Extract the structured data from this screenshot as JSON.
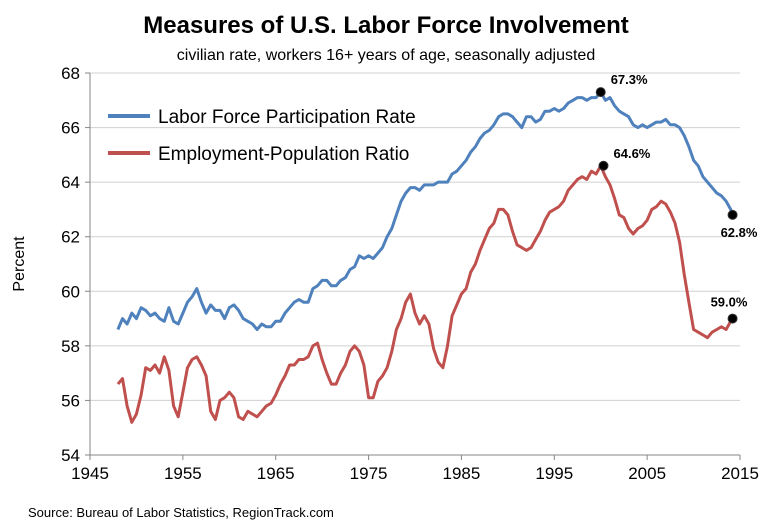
{
  "chart_data": {
    "type": "line",
    "title": "Measures of U.S. Labor Force Involvement",
    "subtitle": "civilian rate, workers 16+ years of age, seasonally adjusted",
    "ylabel": "Percent",
    "xlabel": "",
    "source": "Source: Bureau of Labor Statistics, RegionTrack.com",
    "xlim": [
      1945,
      2015
    ],
    "ylim": [
      54,
      68
    ],
    "x_ticks": [
      "1945",
      "1955",
      "1965",
      "1975",
      "1985",
      "1995",
      "2005",
      "2015"
    ],
    "y_ticks": [
      "54",
      "56",
      "58",
      "60",
      "62",
      "64",
      "66",
      "68"
    ],
    "grid": "horizontal",
    "legend_position": "top-left",
    "series": [
      {
        "name": "Labor Force Participation Rate",
        "color": "#4f81bd",
        "points": [
          [
            1948.0,
            58.6
          ],
          [
            1948.5,
            59.0
          ],
          [
            1949.0,
            58.8
          ],
          [
            1949.5,
            59.2
          ],
          [
            1950.0,
            59.0
          ],
          [
            1950.5,
            59.4
          ],
          [
            1951.0,
            59.3
          ],
          [
            1951.5,
            59.1
          ],
          [
            1952.0,
            59.2
          ],
          [
            1952.5,
            59.0
          ],
          [
            1953.0,
            58.9
          ],
          [
            1953.5,
            59.4
          ],
          [
            1954.0,
            58.9
          ],
          [
            1954.5,
            58.8
          ],
          [
            1955.0,
            59.2
          ],
          [
            1955.5,
            59.6
          ],
          [
            1956.0,
            59.8
          ],
          [
            1956.5,
            60.1
          ],
          [
            1957.0,
            59.6
          ],
          [
            1957.5,
            59.2
          ],
          [
            1958.0,
            59.5
          ],
          [
            1958.5,
            59.3
          ],
          [
            1959.0,
            59.3
          ],
          [
            1959.5,
            59.0
          ],
          [
            1960.0,
            59.4
          ],
          [
            1960.5,
            59.5
          ],
          [
            1961.0,
            59.3
          ],
          [
            1961.5,
            59.0
          ],
          [
            1962.0,
            58.9
          ],
          [
            1962.5,
            58.8
          ],
          [
            1963.0,
            58.6
          ],
          [
            1963.5,
            58.8
          ],
          [
            1964.0,
            58.7
          ],
          [
            1964.5,
            58.7
          ],
          [
            1965.0,
            58.9
          ],
          [
            1965.5,
            58.9
          ],
          [
            1966.0,
            59.2
          ],
          [
            1966.5,
            59.4
          ],
          [
            1967.0,
            59.6
          ],
          [
            1967.5,
            59.7
          ],
          [
            1968.0,
            59.6
          ],
          [
            1968.5,
            59.6
          ],
          [
            1969.0,
            60.1
          ],
          [
            1969.5,
            60.2
          ],
          [
            1970.0,
            60.4
          ],
          [
            1970.5,
            60.4
          ],
          [
            1971.0,
            60.2
          ],
          [
            1971.5,
            60.2
          ],
          [
            1972.0,
            60.4
          ],
          [
            1972.5,
            60.5
          ],
          [
            1973.0,
            60.8
          ],
          [
            1973.5,
            60.9
          ],
          [
            1974.0,
            61.3
          ],
          [
            1974.5,
            61.2
          ],
          [
            1975.0,
            61.3
          ],
          [
            1975.5,
            61.2
          ],
          [
            1976.0,
            61.4
          ],
          [
            1976.5,
            61.6
          ],
          [
            1977.0,
            62.0
          ],
          [
            1977.5,
            62.3
          ],
          [
            1978.0,
            62.8
          ],
          [
            1978.5,
            63.3
          ],
          [
            1979.0,
            63.6
          ],
          [
            1979.5,
            63.8
          ],
          [
            1980.0,
            63.8
          ],
          [
            1980.5,
            63.7
          ],
          [
            1981.0,
            63.9
          ],
          [
            1981.5,
            63.9
          ],
          [
            1982.0,
            63.9
          ],
          [
            1982.5,
            64.0
          ],
          [
            1983.0,
            64.0
          ],
          [
            1983.5,
            64.0
          ],
          [
            1984.0,
            64.3
          ],
          [
            1984.5,
            64.4
          ],
          [
            1985.0,
            64.6
          ],
          [
            1985.5,
            64.8
          ],
          [
            1986.0,
            65.1
          ],
          [
            1986.5,
            65.3
          ],
          [
            1987.0,
            65.6
          ],
          [
            1987.5,
            65.8
          ],
          [
            1988.0,
            65.9
          ],
          [
            1988.5,
            66.1
          ],
          [
            1989.0,
            66.4
          ],
          [
            1989.5,
            66.5
          ],
          [
            1990.0,
            66.5
          ],
          [
            1990.5,
            66.4
          ],
          [
            1991.0,
            66.2
          ],
          [
            1991.5,
            66.0
          ],
          [
            1992.0,
            66.4
          ],
          [
            1992.5,
            66.4
          ],
          [
            1993.0,
            66.2
          ],
          [
            1993.5,
            66.3
          ],
          [
            1994.0,
            66.6
          ],
          [
            1994.5,
            66.6
          ],
          [
            1995.0,
            66.7
          ],
          [
            1995.5,
            66.6
          ],
          [
            1996.0,
            66.7
          ],
          [
            1996.5,
            66.9
          ],
          [
            1997.0,
            67.0
          ],
          [
            1997.5,
            67.1
          ],
          [
            1998.0,
            67.1
          ],
          [
            1998.5,
            67.0
          ],
          [
            1999.0,
            67.1
          ],
          [
            1999.5,
            67.1
          ],
          [
            2000.0,
            67.3
          ],
          [
            2000.5,
            67.0
          ],
          [
            2001.0,
            67.1
          ],
          [
            2001.5,
            66.8
          ],
          [
            2002.0,
            66.6
          ],
          [
            2002.5,
            66.5
          ],
          [
            2003.0,
            66.4
          ],
          [
            2003.5,
            66.1
          ],
          [
            2004.0,
            66.0
          ],
          [
            2004.5,
            66.1
          ],
          [
            2005.0,
            66.0
          ],
          [
            2005.5,
            66.1
          ],
          [
            2006.0,
            66.2
          ],
          [
            2006.5,
            66.2
          ],
          [
            2007.0,
            66.3
          ],
          [
            2007.5,
            66.1
          ],
          [
            2008.0,
            66.1
          ],
          [
            2008.5,
            66.0
          ],
          [
            2009.0,
            65.7
          ],
          [
            2009.5,
            65.3
          ],
          [
            2010.0,
            64.8
          ],
          [
            2010.5,
            64.6
          ],
          [
            2011.0,
            64.2
          ],
          [
            2011.5,
            64.0
          ],
          [
            2012.0,
            63.8
          ],
          [
            2012.5,
            63.6
          ],
          [
            2013.0,
            63.5
          ],
          [
            2013.5,
            63.3
          ],
          [
            2014.0,
            63.0
          ],
          [
            2014.2,
            62.8
          ]
        ]
      },
      {
        "name": "Employment-Population Ratio",
        "color": "#c0504d",
        "points": [
          [
            1948.0,
            56.6
          ],
          [
            1948.5,
            56.8
          ],
          [
            1949.0,
            55.8
          ],
          [
            1949.5,
            55.2
          ],
          [
            1950.0,
            55.5
          ],
          [
            1950.5,
            56.2
          ],
          [
            1951.0,
            57.2
          ],
          [
            1951.5,
            57.1
          ],
          [
            1952.0,
            57.3
          ],
          [
            1952.5,
            57.0
          ],
          [
            1953.0,
            57.6
          ],
          [
            1953.5,
            57.1
          ],
          [
            1954.0,
            55.8
          ],
          [
            1954.5,
            55.4
          ],
          [
            1955.0,
            56.3
          ],
          [
            1955.5,
            57.2
          ],
          [
            1956.0,
            57.5
          ],
          [
            1956.5,
            57.6
          ],
          [
            1957.0,
            57.3
          ],
          [
            1957.5,
            56.9
          ],
          [
            1958.0,
            55.6
          ],
          [
            1958.5,
            55.3
          ],
          [
            1959.0,
            56.0
          ],
          [
            1959.5,
            56.1
          ],
          [
            1960.0,
            56.3
          ],
          [
            1960.5,
            56.1
          ],
          [
            1961.0,
            55.4
          ],
          [
            1961.5,
            55.3
          ],
          [
            1962.0,
            55.6
          ],
          [
            1962.5,
            55.5
          ],
          [
            1963.0,
            55.4
          ],
          [
            1963.5,
            55.6
          ],
          [
            1964.0,
            55.8
          ],
          [
            1964.5,
            55.9
          ],
          [
            1965.0,
            56.2
          ],
          [
            1965.5,
            56.6
          ],
          [
            1966.0,
            56.9
          ],
          [
            1966.5,
            57.3
          ],
          [
            1967.0,
            57.3
          ],
          [
            1967.5,
            57.5
          ],
          [
            1968.0,
            57.5
          ],
          [
            1968.5,
            57.6
          ],
          [
            1969.0,
            58.0
          ],
          [
            1969.5,
            58.1
          ],
          [
            1970.0,
            57.5
          ],
          [
            1970.5,
            57.0
          ],
          [
            1971.0,
            56.6
          ],
          [
            1971.5,
            56.6
          ],
          [
            1972.0,
            57.0
          ],
          [
            1972.5,
            57.3
          ],
          [
            1973.0,
            57.8
          ],
          [
            1973.5,
            58.0
          ],
          [
            1974.0,
            57.8
          ],
          [
            1974.5,
            57.3
          ],
          [
            1975.0,
            56.1
          ],
          [
            1975.5,
            56.1
          ],
          [
            1976.0,
            56.7
          ],
          [
            1976.5,
            56.9
          ],
          [
            1977.0,
            57.2
          ],
          [
            1977.5,
            57.8
          ],
          [
            1978.0,
            58.6
          ],
          [
            1978.5,
            59.0
          ],
          [
            1979.0,
            59.6
          ],
          [
            1979.5,
            59.9
          ],
          [
            1980.0,
            59.2
          ],
          [
            1980.5,
            58.8
          ],
          [
            1981.0,
            59.1
          ],
          [
            1981.5,
            58.8
          ],
          [
            1982.0,
            57.9
          ],
          [
            1982.5,
            57.4
          ],
          [
            1983.0,
            57.2
          ],
          [
            1983.5,
            58.0
          ],
          [
            1984.0,
            59.1
          ],
          [
            1984.5,
            59.5
          ],
          [
            1985.0,
            59.9
          ],
          [
            1985.5,
            60.1
          ],
          [
            1986.0,
            60.7
          ],
          [
            1986.5,
            61.0
          ],
          [
            1987.0,
            61.5
          ],
          [
            1987.5,
            61.9
          ],
          [
            1988.0,
            62.3
          ],
          [
            1988.5,
            62.5
          ],
          [
            1989.0,
            63.0
          ],
          [
            1989.5,
            63.0
          ],
          [
            1990.0,
            62.8
          ],
          [
            1990.5,
            62.2
          ],
          [
            1991.0,
            61.7
          ],
          [
            1991.5,
            61.6
          ],
          [
            1992.0,
            61.5
          ],
          [
            1992.5,
            61.6
          ],
          [
            1993.0,
            61.9
          ],
          [
            1993.5,
            62.2
          ],
          [
            1994.0,
            62.6
          ],
          [
            1994.5,
            62.9
          ],
          [
            1995.0,
            63.0
          ],
          [
            1995.5,
            63.1
          ],
          [
            1996.0,
            63.3
          ],
          [
            1996.5,
            63.7
          ],
          [
            1997.0,
            63.9
          ],
          [
            1997.5,
            64.1
          ],
          [
            1998.0,
            64.2
          ],
          [
            1998.5,
            64.1
          ],
          [
            1999.0,
            64.4
          ],
          [
            1999.5,
            64.3
          ],
          [
            2000.0,
            64.6
          ],
          [
            2000.5,
            64.2
          ],
          [
            2001.0,
            63.9
          ],
          [
            2001.5,
            63.4
          ],
          [
            2002.0,
            62.8
          ],
          [
            2002.5,
            62.7
          ],
          [
            2003.0,
            62.3
          ],
          [
            2003.5,
            62.1
          ],
          [
            2004.0,
            62.3
          ],
          [
            2004.5,
            62.4
          ],
          [
            2005.0,
            62.6
          ],
          [
            2005.5,
            63.0
          ],
          [
            2006.0,
            63.1
          ],
          [
            2006.5,
            63.3
          ],
          [
            2007.0,
            63.2
          ],
          [
            2007.5,
            62.9
          ],
          [
            2008.0,
            62.5
          ],
          [
            2008.5,
            61.8
          ],
          [
            2009.0,
            60.6
          ],
          [
            2009.5,
            59.6
          ],
          [
            2010.0,
            58.6
          ],
          [
            2010.5,
            58.5
          ],
          [
            2011.0,
            58.4
          ],
          [
            2011.5,
            58.3
          ],
          [
            2012.0,
            58.5
          ],
          [
            2012.5,
            58.6
          ],
          [
            2013.0,
            58.7
          ],
          [
            2013.5,
            58.6
          ],
          [
            2014.0,
            58.9
          ],
          [
            2014.2,
            59.0
          ]
        ]
      }
    ],
    "annotations": [
      {
        "series": 0,
        "x": 2000.0,
        "y": 67.3,
        "label": "67.3%"
      },
      {
        "series": 0,
        "x": 2014.2,
        "y": 62.8,
        "label": "62.8%"
      },
      {
        "series": 1,
        "x": 2000.3,
        "y": 64.6,
        "label": "64.6%"
      },
      {
        "series": 1,
        "x": 2014.2,
        "y": 59.0,
        "label": "59.0%"
      }
    ]
  }
}
